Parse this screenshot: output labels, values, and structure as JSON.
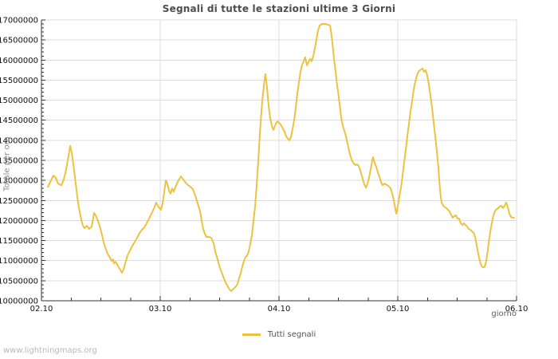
{
  "page": {
    "watermark": "www.lightningmaps.org"
  },
  "chart_data": {
    "type": "line",
    "title": "Segnali di tutte le stazioni ultime 3 Giorni",
    "xlabel": "giorno",
    "ylabel": "Totale per ora",
    "legend_position": "bottom-center",
    "grid": true,
    "y_range": [
      10000000,
      17000000
    ],
    "y_tick_step": 500000,
    "y_minor_tick_step": 100000,
    "x_range_days": [
      0,
      4
    ],
    "x_minor_tick_days": 0.25,
    "y_ticks": [
      "10000000",
      "10500000",
      "11000000",
      "11500000",
      "12000000",
      "12500000",
      "13000000",
      "13500000",
      "14000000",
      "14500000",
      "15000000",
      "15500000",
      "16000000",
      "16500000",
      "17000000"
    ],
    "x_ticks": [
      {
        "label": "02.10",
        "t": 0
      },
      {
        "label": "03.10",
        "t": 1
      },
      {
        "label": "04.10",
        "t": 2
      },
      {
        "label": "05.10",
        "t": 3
      },
      {
        "label": "06.10",
        "t": 4
      }
    ],
    "series": [
      {
        "name": "Tutti segnali",
        "color": "#EDC240",
        "x_unit": "days after 02.10 00:00",
        "y_unit": "signals per hour",
        "points": [
          [
            0.054,
            12840000
          ],
          [
            0.074,
            12960000
          ],
          [
            0.101,
            13120000
          ],
          [
            0.121,
            13060000
          ],
          [
            0.141,
            12920000
          ],
          [
            0.168,
            12880000
          ],
          [
            0.188,
            13020000
          ],
          [
            0.208,
            13280000
          ],
          [
            0.228,
            13620000
          ],
          [
            0.242,
            13860000
          ],
          [
            0.255,
            13680000
          ],
          [
            0.268,
            13420000
          ],
          [
            0.282,
            13080000
          ],
          [
            0.295,
            12760000
          ],
          [
            0.309,
            12430000
          ],
          [
            0.322,
            12210000
          ],
          [
            0.336,
            12010000
          ],
          [
            0.349,
            11870000
          ],
          [
            0.362,
            11810000
          ],
          [
            0.383,
            11870000
          ],
          [
            0.403,
            11790000
          ],
          [
            0.423,
            11850000
          ],
          [
            0.443,
            12190000
          ],
          [
            0.463,
            12090000
          ],
          [
            0.483,
            11930000
          ],
          [
            0.503,
            11730000
          ],
          [
            0.523,
            11470000
          ],
          [
            0.537,
            11330000
          ],
          [
            0.557,
            11170000
          ],
          [
            0.577,
            11070000
          ],
          [
            0.591,
            10990000
          ],
          [
            0.604,
            11030000
          ],
          [
            0.611,
            10930000
          ],
          [
            0.624,
            10970000
          ],
          [
            0.638,
            10900000
          ],
          [
            0.658,
            10800000
          ],
          [
            0.678,
            10700000
          ],
          [
            0.691,
            10780000
          ],
          [
            0.705,
            10930000
          ],
          [
            0.725,
            11130000
          ],
          [
            0.745,
            11250000
          ],
          [
            0.765,
            11370000
          ],
          [
            0.785,
            11470000
          ],
          [
            0.805,
            11570000
          ],
          [
            0.826,
            11690000
          ],
          [
            0.846,
            11770000
          ],
          [
            0.866,
            11830000
          ],
          [
            0.886,
            11930000
          ],
          [
            0.906,
            12050000
          ],
          [
            0.926,
            12170000
          ],
          [
            0.946,
            12290000
          ],
          [
            0.966,
            12450000
          ],
          [
            0.987,
            12330000
          ],
          [
            1.007,
            12270000
          ],
          [
            1.02,
            12430000
          ],
          [
            1.034,
            12720000
          ],
          [
            1.047,
            13000000
          ],
          [
            1.06,
            12920000
          ],
          [
            1.074,
            12740000
          ],
          [
            1.087,
            12670000
          ],
          [
            1.101,
            12800000
          ],
          [
            1.114,
            12720000
          ],
          [
            1.134,
            12880000
          ],
          [
            1.154,
            13000000
          ],
          [
            1.174,
            13100000
          ],
          [
            1.195,
            13020000
          ],
          [
            1.215,
            12940000
          ],
          [
            1.235,
            12880000
          ],
          [
            1.255,
            12840000
          ],
          [
            1.275,
            12780000
          ],
          [
            1.295,
            12620000
          ],
          [
            1.315,
            12430000
          ],
          [
            1.336,
            12230000
          ],
          [
            1.349,
            11990000
          ],
          [
            1.362,
            11790000
          ],
          [
            1.376,
            11670000
          ],
          [
            1.389,
            11590000
          ],
          [
            1.409,
            11590000
          ],
          [
            1.43,
            11570000
          ],
          [
            1.45,
            11430000
          ],
          [
            1.463,
            11230000
          ],
          [
            1.483,
            11030000
          ],
          [
            1.503,
            10820000
          ],
          [
            1.523,
            10660000
          ],
          [
            1.544,
            10500000
          ],
          [
            1.564,
            10380000
          ],
          [
            1.584,
            10280000
          ],
          [
            1.597,
            10240000
          ],
          [
            1.617,
            10300000
          ],
          [
            1.638,
            10360000
          ],
          [
            1.651,
            10420000
          ],
          [
            1.664,
            10560000
          ],
          [
            1.678,
            10680000
          ],
          [
            1.691,
            10860000
          ],
          [
            1.705,
            10990000
          ],
          [
            1.718,
            11090000
          ],
          [
            1.732,
            11130000
          ],
          [
            1.745,
            11230000
          ],
          [
            1.758,
            11410000
          ],
          [
            1.772,
            11630000
          ],
          [
            1.785,
            11990000
          ],
          [
            1.799,
            12370000
          ],
          [
            1.812,
            12880000
          ],
          [
            1.826,
            13520000
          ],
          [
            1.839,
            14160000
          ],
          [
            1.852,
            14710000
          ],
          [
            1.866,
            15190000
          ],
          [
            1.879,
            15530000
          ],
          [
            1.886,
            15650000
          ],
          [
            1.899,
            15310000
          ],
          [
            1.913,
            14850000
          ],
          [
            1.926,
            14550000
          ],
          [
            1.94,
            14360000
          ],
          [
            1.953,
            14260000
          ],
          [
            1.966,
            14360000
          ],
          [
            1.98,
            14450000
          ],
          [
            1.987,
            14470000
          ],
          [
            2.0,
            14430000
          ],
          [
            2.013,
            14400000
          ],
          [
            2.034,
            14280000
          ],
          [
            2.047,
            14220000
          ],
          [
            2.06,
            14100000
          ],
          [
            2.074,
            14040000
          ],
          [
            2.087,
            14000000
          ],
          [
            2.101,
            14080000
          ],
          [
            2.114,
            14280000
          ],
          [
            2.128,
            14510000
          ],
          [
            2.141,
            14810000
          ],
          [
            2.154,
            15150000
          ],
          [
            2.168,
            15450000
          ],
          [
            2.181,
            15710000
          ],
          [
            2.195,
            15890000
          ],
          [
            2.208,
            15970000
          ],
          [
            2.221,
            16070000
          ],
          [
            2.235,
            15870000
          ],
          [
            2.248,
            15950000
          ],
          [
            2.262,
            16030000
          ],
          [
            2.275,
            15970000
          ],
          [
            2.289,
            16110000
          ],
          [
            2.302,
            16300000
          ],
          [
            2.315,
            16500000
          ],
          [
            2.329,
            16740000
          ],
          [
            2.342,
            16860000
          ],
          [
            2.362,
            16900000
          ],
          [
            2.389,
            16900000
          ],
          [
            2.416,
            16880000
          ],
          [
            2.43,
            16860000
          ],
          [
            2.443,
            16600000
          ],
          [
            2.456,
            16260000
          ],
          [
            2.463,
            16030000
          ],
          [
            2.47,
            15870000
          ],
          [
            2.477,
            15710000
          ],
          [
            2.483,
            15510000
          ],
          [
            2.497,
            15210000
          ],
          [
            2.51,
            14910000
          ],
          [
            2.523,
            14590000
          ],
          [
            2.537,
            14360000
          ],
          [
            2.55,
            14240000
          ],
          [
            2.564,
            14100000
          ],
          [
            2.577,
            13920000
          ],
          [
            2.591,
            13720000
          ],
          [
            2.604,
            13580000
          ],
          [
            2.617,
            13480000
          ],
          [
            2.631,
            13420000
          ],
          [
            2.644,
            13380000
          ],
          [
            2.658,
            13400000
          ],
          [
            2.671,
            13360000
          ],
          [
            2.685,
            13240000
          ],
          [
            2.705,
            13040000
          ],
          [
            2.718,
            12900000
          ],
          [
            2.732,
            12820000
          ],
          [
            2.745,
            12920000
          ],
          [
            2.758,
            13060000
          ],
          [
            2.772,
            13280000
          ],
          [
            2.785,
            13500000
          ],
          [
            2.792,
            13580000
          ],
          [
            2.805,
            13440000
          ],
          [
            2.819,
            13340000
          ],
          [
            2.832,
            13200000
          ],
          [
            2.846,
            13080000
          ],
          [
            2.859,
            12960000
          ],
          [
            2.872,
            12880000
          ],
          [
            2.886,
            12920000
          ],
          [
            2.899,
            12900000
          ],
          [
            2.913,
            12880000
          ],
          [
            2.926,
            12840000
          ],
          [
            2.94,
            12800000
          ],
          [
            2.953,
            12670000
          ],
          [
            2.966,
            12510000
          ],
          [
            2.98,
            12290000
          ],
          [
            2.987,
            12170000
          ],
          [
            3.0,
            12350000
          ],
          [
            3.013,
            12590000
          ],
          [
            3.027,
            12820000
          ],
          [
            3.04,
            13120000
          ],
          [
            3.054,
            13460000
          ],
          [
            3.067,
            13760000
          ],
          [
            3.081,
            14120000
          ],
          [
            3.094,
            14410000
          ],
          [
            3.107,
            14710000
          ],
          [
            3.121,
            14970000
          ],
          [
            3.134,
            15270000
          ],
          [
            3.148,
            15470000
          ],
          [
            3.161,
            15610000
          ],
          [
            3.174,
            15710000
          ],
          [
            3.188,
            15750000
          ],
          [
            3.208,
            15790000
          ],
          [
            3.221,
            15710000
          ],
          [
            3.235,
            15750000
          ],
          [
            3.248,
            15610000
          ],
          [
            3.262,
            15390000
          ],
          [
            3.275,
            15110000
          ],
          [
            3.289,
            14790000
          ],
          [
            3.302,
            14450000
          ],
          [
            3.315,
            14120000
          ],
          [
            3.329,
            13720000
          ],
          [
            3.342,
            13320000
          ],
          [
            3.349,
            13020000
          ],
          [
            3.356,
            12780000
          ],
          [
            3.362,
            12590000
          ],
          [
            3.369,
            12450000
          ],
          [
            3.383,
            12370000
          ],
          [
            3.396,
            12330000
          ],
          [
            3.409,
            12310000
          ],
          [
            3.423,
            12270000
          ],
          [
            3.436,
            12230000
          ],
          [
            3.45,
            12130000
          ],
          [
            3.463,
            12070000
          ],
          [
            3.477,
            12110000
          ],
          [
            3.49,
            12130000
          ],
          [
            3.503,
            12050000
          ],
          [
            3.517,
            12050000
          ],
          [
            3.53,
            11930000
          ],
          [
            3.544,
            11890000
          ],
          [
            3.557,
            11930000
          ],
          [
            3.57,
            11890000
          ],
          [
            3.584,
            11850000
          ],
          [
            3.597,
            11790000
          ],
          [
            3.611,
            11770000
          ],
          [
            3.624,
            11730000
          ],
          [
            3.638,
            11690000
          ],
          [
            3.651,
            11590000
          ],
          [
            3.664,
            11390000
          ],
          [
            3.678,
            11170000
          ],
          [
            3.691,
            10990000
          ],
          [
            3.705,
            10870000
          ],
          [
            3.718,
            10830000
          ],
          [
            3.732,
            10850000
          ],
          [
            3.745,
            10990000
          ],
          [
            3.758,
            11250000
          ],
          [
            3.772,
            11590000
          ],
          [
            3.785,
            11830000
          ],
          [
            3.799,
            12050000
          ],
          [
            3.812,
            12190000
          ],
          [
            3.826,
            12270000
          ],
          [
            3.846,
            12310000
          ],
          [
            3.859,
            12350000
          ],
          [
            3.872,
            12370000
          ],
          [
            3.886,
            12310000
          ],
          [
            3.899,
            12370000
          ],
          [
            3.913,
            12450000
          ],
          [
            3.926,
            12330000
          ],
          [
            3.94,
            12170000
          ],
          [
            3.953,
            12090000
          ],
          [
            3.966,
            12070000
          ],
          [
            3.98,
            12070000
          ]
        ]
      }
    ]
  }
}
